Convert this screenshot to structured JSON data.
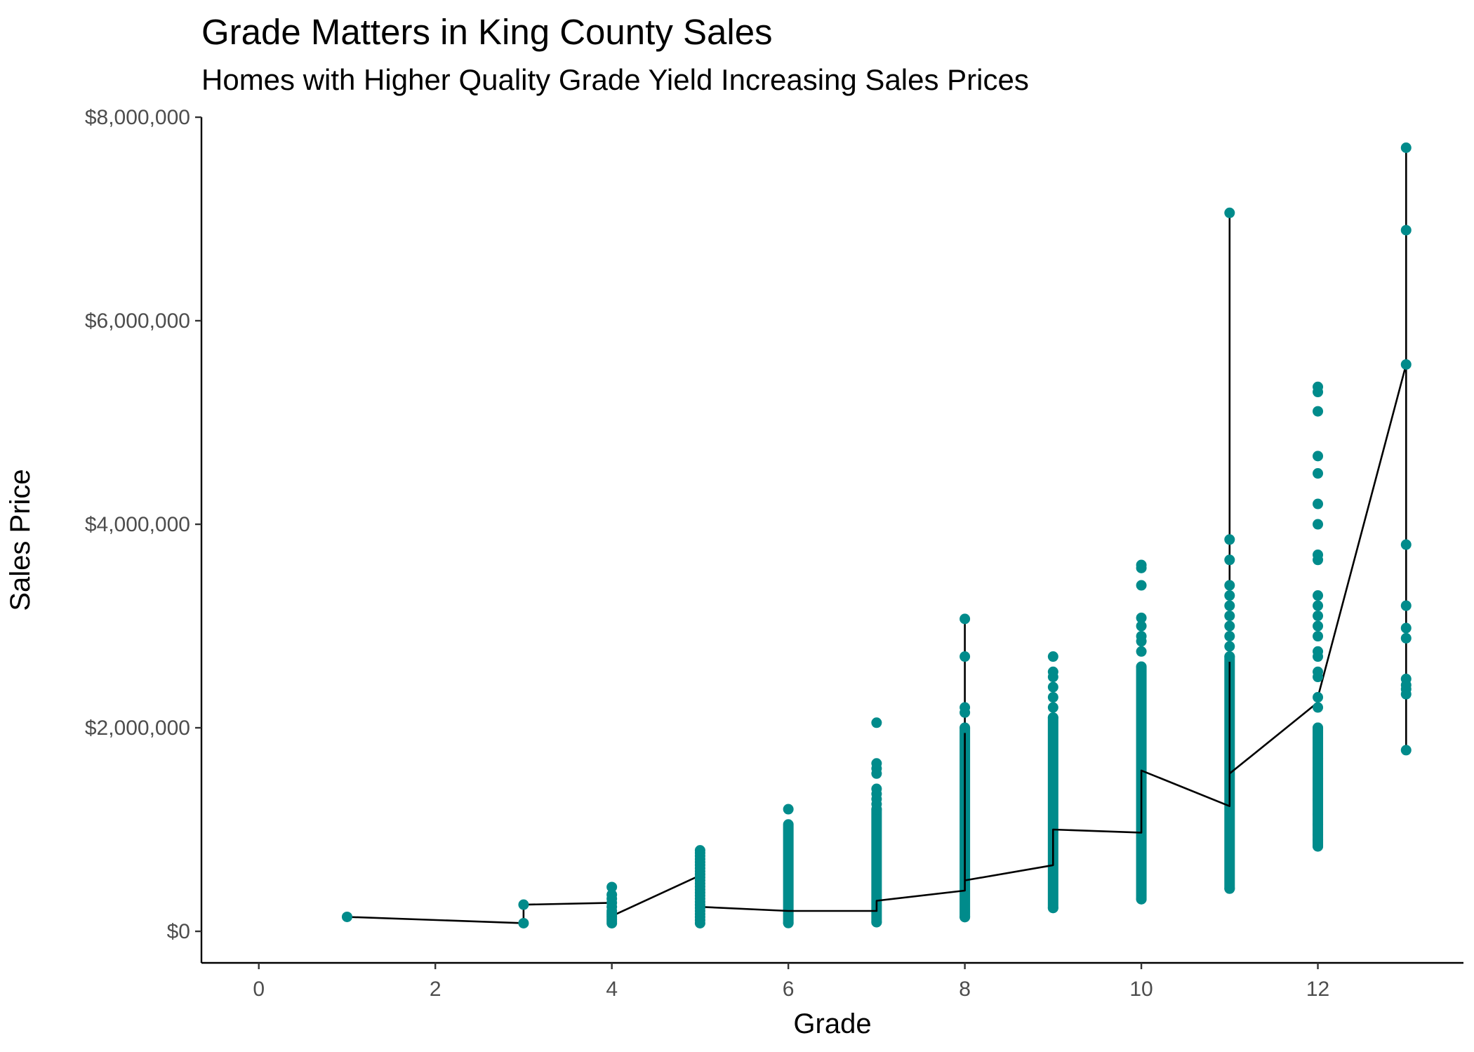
{
  "chart_data": {
    "type": "scatter",
    "title": "Grade Matters in King County Sales",
    "subtitle": "Homes with Higher Quality Grade Yield Increasing Sales Prices",
    "xlabel": "Grade",
    "ylabel": "Sales Price",
    "xlim": [
      -0.65,
      13.65
    ],
    "ylim": [
      -310000,
      8000000
    ],
    "x_ticks": [
      0,
      2,
      4,
      6,
      8,
      10,
      12
    ],
    "x_tick_labels": [
      "0",
      "2",
      "4",
      "6",
      "8",
      "10",
      "12"
    ],
    "y_ticks": [
      0,
      2000000,
      4000000,
      6000000,
      8000000
    ],
    "y_tick_labels": [
      "$0",
      "$2,000,000",
      "$4,000,000",
      "$6,000,000",
      "$8,000,000"
    ],
    "grid": false,
    "point_color": "#008b8b",
    "line_color": "#000000",
    "series": [
      {
        "values_by_grade": [
          {
            "grade": 1,
            "prices": [
              142000
            ]
          },
          {
            "grade": 3,
            "prices": [
              80000,
              262000
            ]
          },
          {
            "grade": 4,
            "prices": [
              80000,
              100000,
              120000,
              140000,
              160000,
              180000,
              200000,
              240000,
              280000,
              320000,
              360000,
              435000
            ]
          },
          {
            "grade": 5,
            "prices": [
              80000,
              110000,
              140000,
              170000,
              200000,
              230000,
              260000,
              290000,
              320000,
              350000,
              380000,
              410000,
              440000,
              470000,
              500000,
              530000,
              560000,
              590000,
              620000,
              650000,
              680000,
              710000,
              740000,
              770000,
              796000
            ]
          },
          {
            "grade": 6,
            "prices": [
              82000,
              1200000
            ]
          },
          {
            "grade": 7,
            "prices": [
              90000,
              1200000,
              1250000,
              1300000,
              1350000,
              1400000,
              1550000,
              1600000,
              1650000,
              2050000
            ]
          },
          {
            "grade": 8,
            "prices": [
              140000,
              2000000,
              2150000,
              2200000,
              2700000,
              3070000
            ]
          },
          {
            "grade": 9,
            "prices": [
              230000,
              2100000,
              2200000,
              2300000,
              2400000,
              2500000,
              2550000,
              2700000
            ]
          },
          {
            "grade": 10,
            "prices": [
              316000,
              2600000,
              2750000,
              2850000,
              2900000,
              3000000,
              3080000,
              3400000,
              3570000,
              3600000
            ]
          },
          {
            "grade": 11,
            "prices": [
              420000,
              2700000,
              2800000,
              2900000,
              3000000,
              3100000,
              3200000,
              3300000,
              3400000,
              3650000,
              3850000,
              7060000
            ]
          },
          {
            "grade": 12,
            "prices": [
              835000,
              900000,
              950000,
              1050000,
              1150000,
              1300000,
              1400000,
              1500000,
              1600000,
              1700000,
              1800000,
              1900000,
              2000000,
              2200000,
              2300000,
              2500000,
              2550000,
              2700000,
              2750000,
              2900000,
              3000000,
              3100000,
              3200000,
              3300000,
              3650000,
              3700000,
              4000000,
              4200000,
              4500000,
              4670000,
              5110000,
              5300000,
              5350000
            ]
          },
          {
            "grade": 13,
            "prices": [
              1780000,
              2330000,
              2380000,
              2420000,
              2480000,
              2880000,
              2980000,
              3200000,
              3800000,
              5570000,
              6890000,
              7700000
            ]
          }
        ],
        "dense_ranges": [
          {
            "grade": 6,
            "min": 82000,
            "max": 1050000
          },
          {
            "grade": 7,
            "min": 90000,
            "max": 1200000
          },
          {
            "grade": 8,
            "min": 140000,
            "max": 2000000
          },
          {
            "grade": 9,
            "min": 230000,
            "max": 2100000
          },
          {
            "grade": 10,
            "min": 316000,
            "max": 2600000
          },
          {
            "grade": 11,
            "min": 420000,
            "max": 2700000
          },
          {
            "grade": 12,
            "min": 835000,
            "max": 2000000
          }
        ]
      },
      {
        "line_path": [
          {
            "x": 1,
            "y": 142000
          },
          {
            "x": 3,
            "y": 80000
          },
          {
            "x": 3,
            "y": 262000
          },
          {
            "x": 4,
            "y": 280000
          },
          {
            "x": 4,
            "y": 150000
          },
          {
            "x": 5,
            "y": 550000
          },
          {
            "x": 5,
            "y": 240000
          },
          {
            "x": 6,
            "y": 200000
          },
          {
            "x": 7,
            "y": 200000
          },
          {
            "x": 7,
            "y": 300000
          },
          {
            "x": 8,
            "y": 400000
          },
          {
            "x": 8,
            "y": 3070000
          },
          {
            "x": 8,
            "y": 500000
          },
          {
            "x": 9,
            "y": 650000
          },
          {
            "x": 9,
            "y": 1000000
          },
          {
            "x": 10,
            "y": 970000
          },
          {
            "x": 10,
            "y": 1580000
          },
          {
            "x": 11,
            "y": 1230000
          },
          {
            "x": 11,
            "y": 7060000
          },
          {
            "x": 11,
            "y": 1550000
          },
          {
            "x": 12,
            "y": 2250000
          },
          {
            "x": 12,
            "y": 2300000
          },
          {
            "x": 13,
            "y": 5570000
          },
          {
            "x": 13,
            "y": 1780000
          },
          {
            "x": 13,
            "y": 7700000
          }
        ]
      }
    ]
  }
}
